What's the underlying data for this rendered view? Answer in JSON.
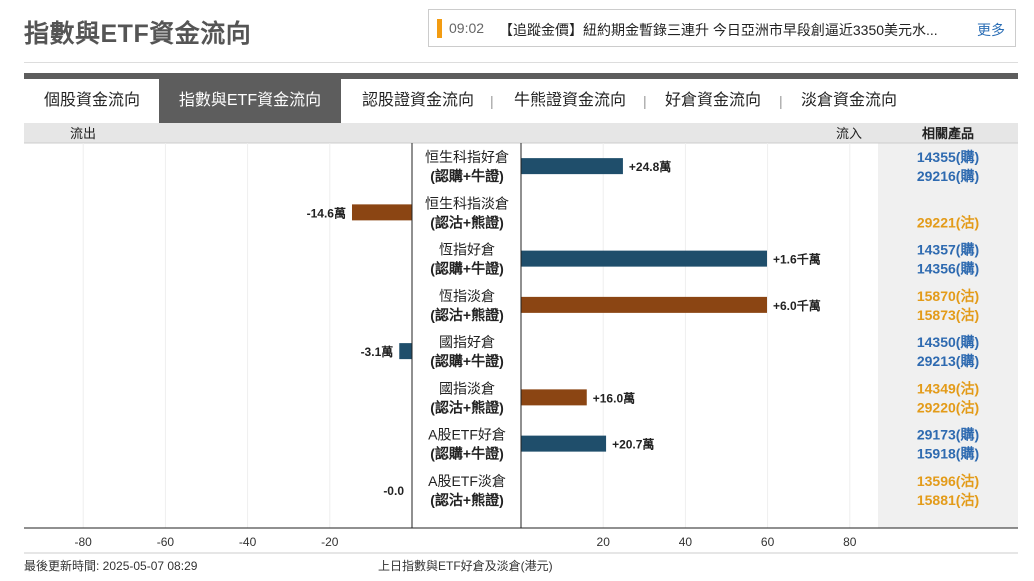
{
  "page": {
    "title": "指數與ETF資金流向"
  },
  "ticker": {
    "time": "09:02",
    "text": "【追蹤金價】紐約期金暫錄三連升 今日亞洲市早段創逼近3350美元水...",
    "more_label": "更多"
  },
  "tabs": [
    {
      "label": "個股資金流向",
      "active": false
    },
    {
      "label": "指數與ETF資金流向",
      "active": true
    },
    {
      "label": "認股證資金流向",
      "active": false
    },
    {
      "label": "牛熊證資金流向",
      "active": false
    },
    {
      "label": "好倉資金流向",
      "active": false
    },
    {
      "label": "淡倉資金流向",
      "active": false
    }
  ],
  "tab_separator": "|",
  "header": {
    "outflow": "流出",
    "inflow": "流入",
    "products": "相關產品"
  },
  "footer": {
    "updated": "最後更新時間: 2025-05-07 08:29",
    "caption": "上日指數與ETF好倉及淡倉(港元)"
  },
  "chart_data": {
    "type": "bar",
    "orientation": "horizontal-diverging",
    "unit_note": "values in 萬 (10,000 HKD)",
    "xlim": [
      -90,
      90
    ],
    "x_ticks_left": [
      -80,
      -60,
      -40,
      -20
    ],
    "x_ticks_right": [
      20,
      40,
      60,
      80
    ],
    "colors": {
      "bull": "#1f4e6b",
      "bear": "#8b4513",
      "call": "#2e6ab0",
      "put": "#e39b19"
    },
    "categories": [
      {
        "name": "恒生科指好倉",
        "sub": "(認購+牛證)",
        "value": 24.8,
        "label": "+24.8萬",
        "kind": "bull",
        "products": [
          {
            "text": "14355(購)",
            "kind": "call"
          },
          {
            "text": "29216(購)",
            "kind": "call"
          }
        ]
      },
      {
        "name": "恒生科指淡倉",
        "sub": "(認沽+熊證)",
        "value": -14.6,
        "label": "-14.6萬",
        "kind": "bear",
        "products": [
          {
            "text": "29221(沽)",
            "kind": "put"
          }
        ]
      },
      {
        "name": "恆指好倉",
        "sub": "(認購+牛證)",
        "value": 1600,
        "label": "+1.6千萬",
        "kind": "bull",
        "products": [
          {
            "text": "14357(購)",
            "kind": "call"
          },
          {
            "text": "14356(購)",
            "kind": "call"
          }
        ]
      },
      {
        "name": "恆指淡倉",
        "sub": "(認沽+熊證)",
        "value": 6000,
        "label": "+6.0千萬",
        "kind": "bear",
        "products": [
          {
            "text": "15870(沽)",
            "kind": "put"
          },
          {
            "text": "15873(沽)",
            "kind": "put"
          }
        ]
      },
      {
        "name": "國指好倉",
        "sub": "(認購+牛證)",
        "value": -3.1,
        "label": "-3.1萬",
        "kind": "bull",
        "products": [
          {
            "text": "14350(購)",
            "kind": "call"
          },
          {
            "text": "29213(購)",
            "kind": "call"
          }
        ]
      },
      {
        "name": "國指淡倉",
        "sub": "(認沽+熊證)",
        "value": 16.0,
        "label": "+16.0萬",
        "kind": "bear",
        "products": [
          {
            "text": "14349(沽)",
            "kind": "put"
          },
          {
            "text": "29220(沽)",
            "kind": "put"
          }
        ]
      },
      {
        "name": "A股ETF好倉",
        "sub": "(認購+牛證)",
        "value": 20.7,
        "label": "+20.7萬",
        "kind": "bull",
        "products": [
          {
            "text": "29173(購)",
            "kind": "call"
          },
          {
            "text": "15918(購)",
            "kind": "call"
          }
        ]
      },
      {
        "name": "A股ETF淡倉",
        "sub": "(認沽+熊證)",
        "value": -0.0,
        "label": "-0.0",
        "kind": "bear",
        "products": [
          {
            "text": "13596(沽)",
            "kind": "put"
          },
          {
            "text": "15881(沽)",
            "kind": "put"
          }
        ]
      }
    ]
  }
}
